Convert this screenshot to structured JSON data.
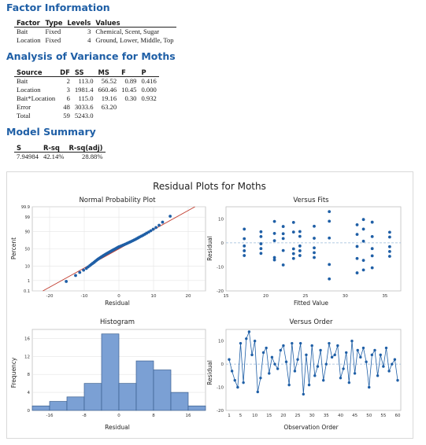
{
  "factor_info": {
    "title": "Factor Information",
    "headers": [
      "Factor",
      "Type",
      "Levels",
      "Values"
    ],
    "rows": [
      [
        "Bait",
        "Fixed",
        "3",
        "Chemical, Scent, Sugar"
      ],
      [
        "Location",
        "Fixed",
        "4",
        "Ground, Lower, Middle, Top"
      ]
    ]
  },
  "anova": {
    "title": "Analysis of Variance for Moths",
    "headers": [
      "Source",
      "DF",
      "SS",
      "MS",
      "F",
      "P"
    ],
    "rows": [
      [
        "Bait",
        "2",
        "113.0",
        "56.52",
        "0.89",
        "0.416"
      ],
      [
        "Location",
        "3",
        "1981.4",
        "660.46",
        "10.45",
        "0.000"
      ],
      [
        "Bait*Location",
        "6",
        "115.0",
        "19.16",
        "0.30",
        "0.932"
      ],
      [
        "Error",
        "48",
        "3033.6",
        "63.20",
        "",
        ""
      ],
      [
        "Total",
        "59",
        "5243.0",
        "",
        "",
        ""
      ]
    ]
  },
  "model_summary": {
    "title": "Model Summary",
    "headers": [
      "S",
      "R-sq",
      "R-sq(adj)"
    ],
    "row": [
      "7.94984",
      "42.14%",
      "28.88%"
    ]
  },
  "residual_plots": {
    "title": "Residual Plots for Moths",
    "colors": {
      "point": "#1f5fa6",
      "bar_fill": "#7ba0d4",
      "fit_line": "#c0392b",
      "zero_line": "#9ab8d8"
    },
    "panels": {
      "normal": {
        "title": "Normal Probability Plot",
        "xlabel": "Residual",
        "ylabel": "Percent",
        "xticks": [
          "-20",
          "-10",
          "0",
          "10",
          "20"
        ],
        "yticks": [
          "0.1",
          "1",
          "10",
          "50",
          "90",
          "99",
          "99.9"
        ]
      },
      "fits": {
        "title": "Versus Fits",
        "xlabel": "Fitted Value",
        "ylabel": "Residual",
        "xticks": [
          "15",
          "20",
          "25",
          "30",
          "35"
        ],
        "yticks": [
          "-20",
          "-10",
          "0",
          "10"
        ]
      },
      "hist": {
        "title": "Histogram",
        "xlabel": "Residual",
        "ylabel": "Frequency",
        "xticks": [
          "-16",
          "-8",
          "0",
          "8",
          "16"
        ],
        "yticks": [
          "0",
          "4",
          "8",
          "12",
          "16"
        ]
      },
      "order": {
        "title": "Versus Order",
        "xlabel": "Observation Order",
        "ylabel": "Residual",
        "xticks": [
          "1",
          "5",
          "10",
          "15",
          "20",
          "25",
          "30",
          "35",
          "40",
          "45",
          "50",
          "55",
          "60"
        ],
        "yticks": [
          "-20",
          "-10",
          "0",
          "10"
        ]
      }
    }
  },
  "chart_data": [
    {
      "type": "scatter",
      "title": "Normal Probability Plot",
      "xlabel": "Residual",
      "ylabel": "Percent",
      "xlim": [
        -25,
        25
      ],
      "ylim_percent": [
        0.1,
        99.9
      ],
      "yscale": "normal-probability",
      "fit_line": true,
      "x": [
        -15.2,
        -12.5,
        -11.3,
        -10.2,
        -9.4,
        -8.9,
        -8.4,
        -8.0,
        -7.6,
        -7.2,
        -6.9,
        -6.6,
        -6.3,
        -6.0,
        -5.7,
        -5.4,
        -5.1,
        -4.8,
        -4.5,
        -4.2,
        -3.9,
        -3.6,
        -3.3,
        -3.0,
        -2.7,
        -2.4,
        -2.1,
        -1.8,
        -1.5,
        -1.2,
        -0.9,
        -0.6,
        -0.3,
        0.0,
        0.4,
        0.8,
        1.2,
        1.6,
        2.0,
        2.4,
        2.8,
        3.2,
        3.6,
        4.0,
        4.4,
        4.8,
        5.2,
        5.6,
        6.0,
        6.5,
        7.0,
        7.5,
        8.0,
        8.6,
        9.2,
        9.9,
        10.7,
        11.6,
        12.6,
        14.8
      ]
    },
    {
      "type": "scatter",
      "title": "Versus Fits",
      "xlabel": "Fitted Value",
      "ylabel": "Residual",
      "xlim": [
        15,
        37
      ],
      "ylim": [
        -20,
        15
      ],
      "reference_line": 0,
      "x": [
        17.3,
        17.3,
        17.3,
        17.3,
        17.3,
        19.4,
        19.4,
        19.4,
        19.4,
        19.4,
        21.1,
        21.1,
        21.1,
        21.1,
        21.1,
        22.2,
        22.2,
        22.2,
        22.2,
        22.2,
        23.5,
        23.5,
        23.5,
        23.5,
        23.5,
        24.3,
        24.3,
        24.3,
        24.3,
        24.3,
        26.1,
        26.1,
        26.1,
        26.1,
        26.1,
        28.0,
        28.0,
        28.0,
        28.0,
        28.0,
        31.5,
        31.5,
        31.5,
        31.5,
        31.5,
        32.3,
        32.3,
        32.3,
        32.3,
        32.3,
        33.4,
        33.4,
        33.4,
        33.4,
        33.4,
        35.6,
        35.6,
        35.6,
        35.6,
        35.6
      ],
      "y": [
        5.7,
        1.7,
        -1.3,
        -3.3,
        -5.3,
        4.6,
        2.6,
        -0.4,
        -2.4,
        -4.4,
        8.9,
        3.9,
        0.9,
        -6.1,
        -7.1,
        6.8,
        3.8,
        1.8,
        -3.2,
        -9.2,
        8.5,
        4.5,
        -2.5,
        -4.5,
        -6.5,
        4.7,
        2.7,
        -1.3,
        -3.3,
        -5.3,
        6.9,
        1.9,
        -2.1,
        -4.1,
        -6.1,
        13.0,
        9.0,
        2.0,
        -9.0,
        -15.0,
        7.5,
        3.5,
        -1.5,
        -6.5,
        -12.5,
        9.7,
        5.7,
        0.7,
        -7.3,
        -11.3,
        8.6,
        2.6,
        -2.4,
        -5.4,
        -10.4,
        4.4,
        2.4,
        -1.6,
        -3.6,
        -5.6
      ]
    },
    {
      "type": "bar",
      "title": "Histogram",
      "xlabel": "Residual",
      "ylabel": "Frequency",
      "bin_edges": [
        -20,
        -16,
        -12,
        -8,
        -4,
        0,
        4,
        8,
        12,
        16,
        20
      ],
      "values": [
        1,
        2,
        3,
        6,
        17,
        6,
        11,
        9,
        4,
        1
      ],
      "ylim": [
        0,
        18
      ]
    },
    {
      "type": "line",
      "title": "Versus Order",
      "xlabel": "Observation Order",
      "ylabel": "Residual",
      "xlim": [
        1,
        60
      ],
      "ylim": [
        -20,
        15
      ],
      "reference_line": 0,
      "x": [
        1,
        2,
        3,
        4,
        5,
        6,
        7,
        8,
        9,
        10,
        11,
        12,
        13,
        14,
        15,
        16,
        17,
        18,
        19,
        20,
        21,
        22,
        23,
        24,
        25,
        26,
        27,
        28,
        29,
        30,
        31,
        32,
        33,
        34,
        35,
        36,
        37,
        38,
        39,
        40,
        41,
        42,
        43,
        44,
        45,
        46,
        47,
        48,
        49,
        50,
        51,
        52,
        53,
        54,
        55,
        56,
        57,
        58,
        59,
        60
      ],
      "y": [
        2,
        -3,
        -7,
        -10,
        9,
        -8,
        11,
        14,
        4,
        10,
        -12,
        -6,
        5,
        7,
        -4,
        3,
        0,
        -2,
        6,
        8,
        1,
        -9,
        9,
        -3,
        2,
        9,
        -13,
        4,
        -9,
        8,
        -5,
        -1,
        6,
        -7,
        0,
        9,
        3,
        4,
        8,
        -6,
        -2,
        5,
        -8,
        10,
        -4,
        6,
        3,
        7,
        1,
        -10,
        4,
        6,
        -5,
        4,
        -1,
        7,
        -3,
        0,
        2,
        -7
      ]
    }
  ]
}
